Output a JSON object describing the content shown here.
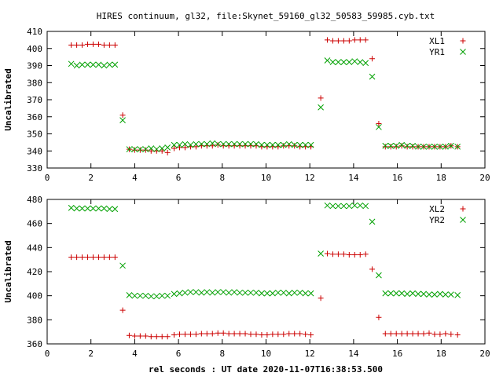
{
  "title": "HIRES continuum, gl32, file:Skynet_59160_gl32_50583_59985.cyb.txt",
  "xlabel": "rel seconds : UT date 2020-11-07T16:38:53.500",
  "chart_data": [
    {
      "type": "scatter",
      "ylabel": "Uncalibrated",
      "xlim": [
        0,
        20
      ],
      "ylim": [
        330,
        410
      ],
      "xticks": [
        0,
        2,
        4,
        6,
        8,
        10,
        12,
        14,
        16,
        18,
        20
      ],
      "yticks": [
        330,
        340,
        350,
        360,
        370,
        380,
        390,
        400,
        410
      ],
      "grid": false,
      "legend_position": "top-right",
      "series": [
        {
          "name": "XL1",
          "marker": "plus",
          "color": "#cc0000",
          "x": [
            1.1,
            1.35,
            1.6,
            1.85,
            2.1,
            2.35,
            2.6,
            2.85,
            3.1,
            3.45,
            3.75,
            4.0,
            4.25,
            4.5,
            4.75,
            5.0,
            5.25,
            5.5,
            5.8,
            6.05,
            6.3,
            6.55,
            6.8,
            7.05,
            7.3,
            7.55,
            7.8,
            8.05,
            8.3,
            8.55,
            8.8,
            9.05,
            9.3,
            9.55,
            9.8,
            10.05,
            10.3,
            10.55,
            10.8,
            11.05,
            11.3,
            11.55,
            11.8,
            12.05,
            12.5,
            12.8,
            13.05,
            13.3,
            13.55,
            13.8,
            14.05,
            14.3,
            14.55,
            14.85,
            15.15,
            15.45,
            15.7,
            15.95,
            16.2,
            16.45,
            16.7,
            16.95,
            17.2,
            17.45,
            17.7,
            17.95,
            18.2,
            18.45,
            18.75
          ],
          "y": [
            402,
            402,
            402,
            402.5,
            402.5,
            402.5,
            402,
            402,
            402,
            361,
            341,
            340.5,
            340.5,
            340.5,
            340,
            340,
            340,
            339,
            341.5,
            342,
            342,
            342.5,
            342.5,
            343,
            343,
            343,
            343.5,
            343,
            343,
            343,
            343,
            343,
            343,
            343,
            342.5,
            342.5,
            342.5,
            342.5,
            343,
            343,
            343,
            342.5,
            342.5,
            342.5,
            371,
            405,
            404.5,
            404.5,
            404.5,
            404.5,
            405,
            405,
            405,
            394,
            356,
            342.5,
            342.5,
            342.5,
            343,
            342.5,
            342.5,
            342.5,
            342.5,
            342.5,
            342.5,
            342.5,
            342.5,
            343,
            342.5
          ]
        },
        {
          "name": "YR1",
          "marker": "cross",
          "color": "#00a000",
          "x": [
            1.1,
            1.35,
            1.6,
            1.85,
            2.1,
            2.35,
            2.6,
            2.85,
            3.1,
            3.45,
            3.75,
            4.0,
            4.25,
            4.5,
            4.75,
            5.0,
            5.25,
            5.5,
            5.8,
            6.05,
            6.3,
            6.55,
            6.8,
            7.05,
            7.3,
            7.55,
            7.8,
            8.05,
            8.3,
            8.55,
            8.8,
            9.05,
            9.3,
            9.55,
            9.8,
            10.05,
            10.3,
            10.55,
            10.8,
            11.05,
            11.3,
            11.55,
            11.8,
            12.05,
            12.5,
            12.8,
            13.05,
            13.3,
            13.55,
            13.8,
            14.05,
            14.3,
            14.55,
            14.85,
            15.15,
            15.45,
            15.7,
            15.95,
            16.2,
            16.45,
            16.7,
            16.95,
            17.2,
            17.45,
            17.7,
            17.95,
            18.2,
            18.45,
            18.75
          ],
          "y": [
            391,
            390,
            390.5,
            390.5,
            390.5,
            390.5,
            390,
            390.5,
            390.5,
            358,
            341,
            341,
            341,
            341,
            341.5,
            341,
            341.5,
            342,
            343.5,
            343.5,
            344,
            343.5,
            344,
            344,
            344,
            344.5,
            344,
            344,
            344,
            344,
            344,
            344,
            344,
            344,
            343.5,
            343.5,
            343.5,
            343.5,
            343.5,
            344,
            343.5,
            343.5,
            343.5,
            343.5,
            365.5,
            393,
            392,
            392,
            392,
            392,
            392.5,
            392,
            391.5,
            383.5,
            354,
            343,
            343,
            343,
            343.5,
            343,
            343,
            342.5,
            342.5,
            342.5,
            342.5,
            342.5,
            342.5,
            343,
            342.5
          ]
        }
      ]
    },
    {
      "type": "scatter",
      "ylabel": "Uncalibrated",
      "xlim": [
        0,
        20
      ],
      "ylim": [
        360,
        480
      ],
      "xticks": [
        0,
        2,
        4,
        6,
        8,
        10,
        12,
        14,
        16,
        18,
        20
      ],
      "yticks": [
        360,
        380,
        400,
        420,
        440,
        460,
        480
      ],
      "grid": false,
      "legend_position": "top-right",
      "series": [
        {
          "name": "XL2",
          "marker": "plus",
          "color": "#cc0000",
          "x": [
            1.1,
            1.35,
            1.6,
            1.85,
            2.1,
            2.35,
            2.6,
            2.85,
            3.1,
            3.45,
            3.75,
            4.0,
            4.25,
            4.5,
            4.75,
            5.0,
            5.25,
            5.5,
            5.8,
            6.05,
            6.3,
            6.55,
            6.8,
            7.05,
            7.3,
            7.55,
            7.8,
            8.05,
            8.3,
            8.55,
            8.8,
            9.05,
            9.3,
            9.55,
            9.8,
            10.05,
            10.3,
            10.55,
            10.8,
            11.05,
            11.3,
            11.55,
            11.8,
            12.05,
            12.5,
            12.8,
            13.05,
            13.3,
            13.55,
            13.8,
            14.05,
            14.3,
            14.55,
            14.85,
            15.15,
            15.45,
            15.7,
            15.95,
            16.2,
            16.45,
            16.7,
            16.95,
            17.2,
            17.45,
            17.7,
            17.95,
            18.2,
            18.45,
            18.75
          ],
          "y": [
            432,
            432,
            432,
            432,
            432,
            432,
            432,
            432,
            432,
            388,
            367,
            366.5,
            366.5,
            366.5,
            366,
            366,
            366,
            366,
            367.5,
            368,
            368,
            368,
            368,
            368.5,
            368.5,
            368.5,
            369,
            369,
            368.5,
            368.5,
            368.5,
            368.5,
            368,
            368,
            367.5,
            367.5,
            368,
            368,
            368,
            368.5,
            368.5,
            368.5,
            368,
            367.5,
            398,
            435,
            434.5,
            434.5,
            434.5,
            434,
            434,
            434,
            434.5,
            422,
            382,
            368.5,
            368.5,
            368.5,
            368.5,
            368.5,
            368.5,
            368.5,
            368.5,
            369,
            368,
            368,
            368.5,
            368,
            367.5
          ]
        },
        {
          "name": "YR2",
          "marker": "cross",
          "color": "#00a000",
          "x": [
            1.1,
            1.35,
            1.6,
            1.85,
            2.1,
            2.35,
            2.6,
            2.85,
            3.1,
            3.45,
            3.75,
            4.0,
            4.25,
            4.5,
            4.75,
            5.0,
            5.25,
            5.5,
            5.8,
            6.05,
            6.3,
            6.55,
            6.8,
            7.05,
            7.3,
            7.55,
            7.8,
            8.05,
            8.3,
            8.55,
            8.8,
            9.05,
            9.3,
            9.55,
            9.8,
            10.05,
            10.3,
            10.55,
            10.8,
            11.05,
            11.3,
            11.55,
            11.8,
            12.05,
            12.5,
            12.8,
            13.05,
            13.3,
            13.55,
            13.8,
            14.05,
            14.3,
            14.55,
            14.85,
            15.15,
            15.45,
            15.7,
            15.95,
            16.2,
            16.45,
            16.7,
            16.95,
            17.2,
            17.45,
            17.7,
            17.95,
            18.2,
            18.45,
            18.75
          ],
          "y": [
            473,
            472.5,
            472.5,
            472.5,
            472.5,
            472.5,
            472.5,
            472,
            472,
            425,
            400.5,
            400,
            400,
            400,
            399.5,
            399.5,
            400,
            400,
            401.5,
            402,
            402.5,
            403,
            403,
            402.5,
            403,
            402.5,
            403,
            403,
            402.5,
            403,
            402.5,
            402.5,
            402.5,
            402.5,
            402,
            402,
            402,
            402.5,
            402.5,
            402,
            402.5,
            402.5,
            402,
            402,
            435,
            475,
            474.5,
            474.5,
            474.5,
            474.5,
            475,
            475,
            474.5,
            461.5,
            417,
            402,
            402,
            402,
            402,
            401.5,
            402,
            401.5,
            401.5,
            401,
            401,
            401.5,
            401,
            401,
            400.5
          ]
        }
      ]
    }
  ]
}
